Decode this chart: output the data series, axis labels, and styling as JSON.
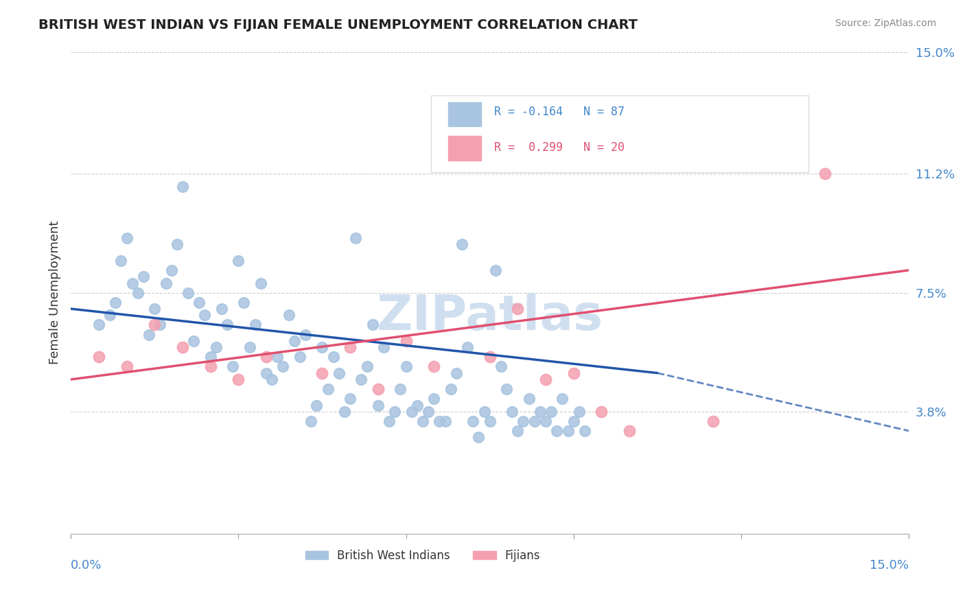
{
  "title": "BRITISH WEST INDIAN VS FIJIAN FEMALE UNEMPLOYMENT CORRELATION CHART",
  "source": "Source: ZipAtlas.com",
  "ylabel": "Female Unemployment",
  "xmin": 0.0,
  "xmax": 15.0,
  "ymin": 0.0,
  "ymax": 15.0,
  "yticks": [
    3.8,
    7.5,
    11.2,
    15.0
  ],
  "xticks": [
    0.0,
    3.0,
    6.0,
    9.0,
    12.0,
    15.0
  ],
  "blue_R": -0.164,
  "blue_N": 87,
  "pink_R": 0.299,
  "pink_N": 20,
  "blue_color": "#a8c4e0",
  "pink_color": "#f4a0b0",
  "blue_line_color": "#2255aa",
  "pink_line_color": "#e05070",
  "watermark_color": "#d0dff0",
  "background_color": "#ffffff",
  "blue_scatter_x": [
    0.5,
    0.7,
    0.8,
    0.9,
    1.0,
    1.1,
    1.2,
    1.3,
    1.4,
    1.5,
    1.6,
    1.7,
    1.8,
    1.9,
    2.0,
    2.1,
    2.2,
    2.3,
    2.4,
    2.5,
    2.6,
    2.7,
    2.8,
    2.9,
    3.0,
    3.1,
    3.2,
    3.3,
    3.4,
    3.5,
    3.6,
    3.7,
    3.8,
    3.9,
    4.0,
    4.1,
    4.2,
    4.3,
    4.4,
    4.5,
    4.6,
    4.7,
    4.8,
    4.9,
    5.0,
    5.1,
    5.2,
    5.3,
    5.4,
    5.5,
    5.6,
    5.7,
    5.8,
    5.9,
    6.0,
    6.1,
    6.2,
    6.3,
    6.4,
    6.5,
    6.6,
    6.7,
    6.8,
    6.9,
    7.0,
    7.1,
    7.2,
    7.3,
    7.4,
    7.5,
    7.6,
    7.7,
    7.8,
    7.9,
    8.0,
    8.1,
    8.2,
    8.3,
    8.4,
    8.5,
    8.6,
    8.7,
    8.8,
    8.9,
    9.0,
    9.1,
    9.2
  ],
  "blue_scatter_y": [
    6.5,
    6.8,
    7.2,
    8.5,
    9.2,
    7.8,
    7.5,
    8.0,
    6.2,
    7.0,
    6.5,
    7.8,
    8.2,
    9.0,
    10.8,
    7.5,
    6.0,
    7.2,
    6.8,
    5.5,
    5.8,
    7.0,
    6.5,
    5.2,
    8.5,
    7.2,
    5.8,
    6.5,
    7.8,
    5.0,
    4.8,
    5.5,
    5.2,
    6.8,
    6.0,
    5.5,
    6.2,
    3.5,
    4.0,
    5.8,
    4.5,
    5.5,
    5.0,
    3.8,
    4.2,
    9.2,
    4.8,
    5.2,
    6.5,
    4.0,
    5.8,
    3.5,
    3.8,
    4.5,
    5.2,
    3.8,
    4.0,
    3.5,
    3.8,
    4.2,
    3.5,
    3.5,
    4.5,
    5.0,
    9.0,
    5.8,
    3.5,
    3.0,
    3.8,
    3.5,
    8.2,
    5.2,
    4.5,
    3.8,
    3.2,
    3.5,
    4.2,
    3.5,
    3.8,
    3.5,
    3.8,
    3.2,
    4.2,
    3.2,
    3.5,
    3.8,
    3.2
  ],
  "pink_scatter_x": [
    0.5,
    1.0,
    1.5,
    2.0,
    2.5,
    3.0,
    3.5,
    4.5,
    5.0,
    5.5,
    6.0,
    6.5,
    7.5,
    8.0,
    8.5,
    9.0,
    9.5,
    10.0,
    11.5,
    13.5
  ],
  "pink_scatter_y": [
    5.5,
    5.2,
    6.5,
    5.8,
    5.2,
    4.8,
    5.5,
    5.0,
    5.8,
    4.5,
    6.0,
    5.2,
    5.5,
    7.0,
    4.8,
    5.0,
    3.8,
    3.2,
    3.5,
    11.2
  ],
  "blue_line_x0": 0.0,
  "blue_line_x1": 10.5,
  "blue_line_y0": 7.0,
  "blue_line_y1": 5.0,
  "blue_dash_x0": 10.5,
  "blue_dash_x1": 15.0,
  "blue_dash_y0": 5.0,
  "blue_dash_y1": 3.2,
  "pink_line_x0": 0.0,
  "pink_line_x1": 15.0,
  "pink_line_y0": 4.8,
  "pink_line_y1": 8.2,
  "legend_blue_label": "R = -0.164   N = 87",
  "legend_pink_label": "R =  0.299   N = 20",
  "bottom_legend_blue": "British West Indians",
  "bottom_legend_pink": "Fijians"
}
